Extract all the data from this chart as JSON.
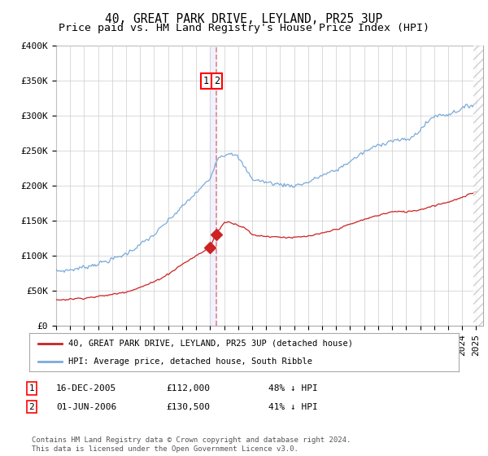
{
  "title": "40, GREAT PARK DRIVE, LEYLAND, PR25 3UP",
  "subtitle": "Price paid vs. HM Land Registry's House Price Index (HPI)",
  "ylim": [
    0,
    400000
  ],
  "yticks": [
    0,
    50000,
    100000,
    150000,
    200000,
    250000,
    300000,
    350000,
    400000
  ],
  "ytick_labels": [
    "£0",
    "£50K",
    "£100K",
    "£150K",
    "£200K",
    "£250K",
    "£300K",
    "£350K",
    "£400K"
  ],
  "xlim_start": 1995.0,
  "xlim_end": 2025.5,
  "hpi_color": "#7aabdb",
  "property_color": "#cc2222",
  "dashed_line_color": "#dd8888",
  "purchase1_date": 2005.96,
  "purchase1_price": 112000,
  "purchase2_date": 2006.42,
  "purchase2_price": 130500,
  "legend_property": "40, GREAT PARK DRIVE, LEYLAND, PR25 3UP (detached house)",
  "legend_hpi": "HPI: Average price, detached house, South Ribble",
  "table_row1": [
    "1",
    "16-DEC-2005",
    "£112,000",
    "48% ↓ HPI"
  ],
  "table_row2": [
    "2",
    "01-JUN-2006",
    "£130,500",
    "41% ↓ HPI"
  ],
  "footer": "Contains HM Land Registry data © Crown copyright and database right 2024.\nThis data is licensed under the Open Government Licence v3.0.",
  "background_color": "#ffffff",
  "grid_color": "#cccccc",
  "title_fontsize": 10.5,
  "subtitle_fontsize": 9.5,
  "tick_fontsize": 8,
  "band_color": "#eeeeff"
}
